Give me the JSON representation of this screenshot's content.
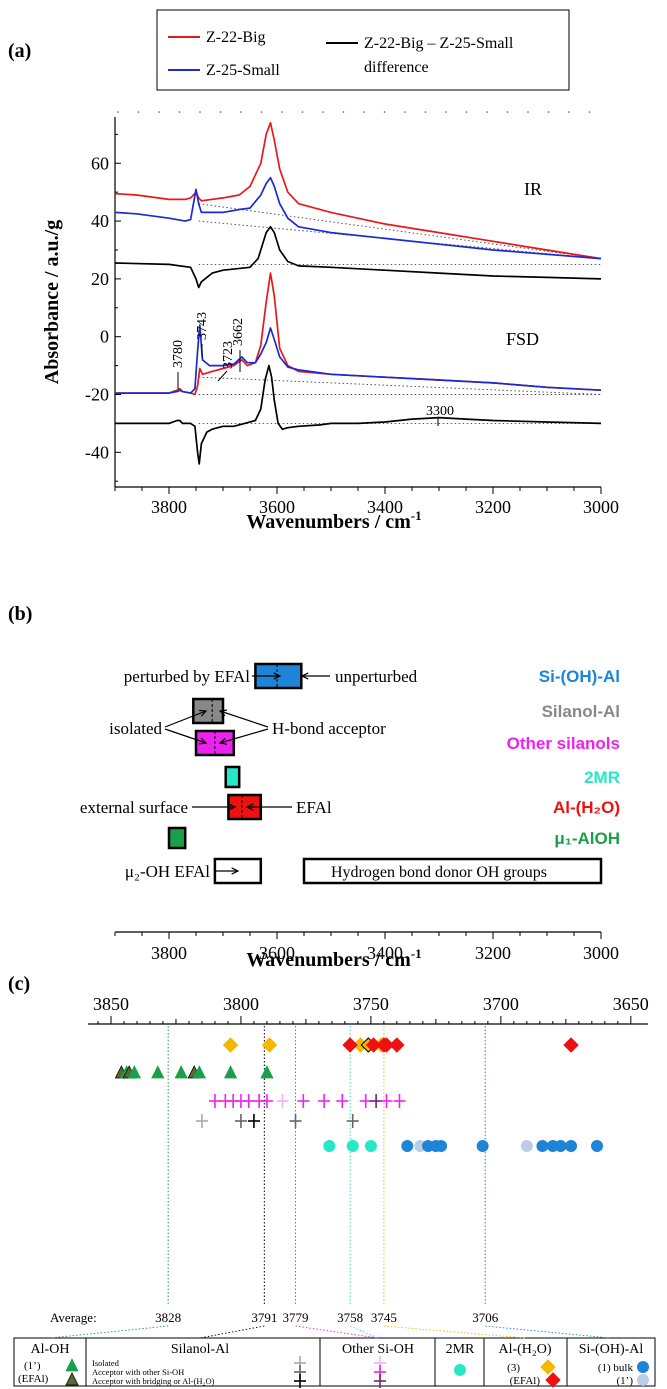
{
  "panel_labels": {
    "a": "(a)",
    "b": "(b)",
    "c": "(c)"
  },
  "colors": {
    "big": "#e8191a",
    "small": "#1a2ad6",
    "diff": "#000000",
    "sioh_al": "#1e84d8",
    "sioh_al_light": "#b9cde6",
    "silanol": "#888888",
    "other": "#ee22ee",
    "mr2": "#25e8c6",
    "al_h2o": "#ee1111",
    "al_h2o_3": "#f5b800",
    "alooh": "#1aa04a",
    "alooh_efal": "#556b2f"
  },
  "chart_data": [
    {
      "type": "line",
      "title": "",
      "xlabel": "Wavenumbers / cm",
      "xlabel_sup": "-1",
      "ylabel": "Absorbance / a.u./g",
      "xlim": [
        3900,
        3000
      ],
      "ylim": [
        -52,
        76
      ],
      "xticks": [
        3800,
        3600,
        3400,
        3200,
        3000
      ],
      "yticks": [
        -40,
        -20,
        0,
        20,
        40,
        60
      ],
      "legend": {
        "placement": "top",
        "entries": [
          {
            "name": "Z-22-Big",
            "color": "#e8191a"
          },
          {
            "name": "Z-25-Small",
            "color": "#1a2ad6"
          },
          {
            "name": "Z-22-Big – Z-25-Small",
            "name2": "difference",
            "color": "#000000"
          }
        ]
      },
      "text_labels": [
        "IR",
        "FSD"
      ],
      "peak_labels": [
        "3780",
        "3743",
        "3723",
        "3662",
        "3300"
      ],
      "series": [
        {
          "name": "Z-22-Big",
          "group": "IR",
          "color": "#e8191a",
          "x": [
            3900,
            3860,
            3800,
            3770,
            3760,
            3750,
            3745,
            3740,
            3700,
            3670,
            3650,
            3630,
            3620,
            3612,
            3605,
            3595,
            3580,
            3560,
            3500,
            3400,
            3300,
            3200,
            3100,
            3000
          ],
          "y": [
            49.5,
            49,
            47.5,
            47.5,
            48,
            50,
            48,
            47,
            48,
            49,
            52,
            60,
            70,
            74,
            68,
            58,
            50,
            46,
            43,
            39,
            36,
            33,
            30,
            27
          ]
        },
        {
          "name": "Z-25-Small",
          "group": "IR",
          "color": "#1a2ad6",
          "x": [
            3900,
            3860,
            3800,
            3770,
            3760,
            3750,
            3745,
            3740,
            3700,
            3670,
            3650,
            3630,
            3620,
            3612,
            3605,
            3595,
            3580,
            3560,
            3500,
            3400,
            3300,
            3200,
            3100,
            3000
          ],
          "y": [
            43,
            42.5,
            41,
            40,
            40.5,
            51,
            46,
            43,
            43,
            44,
            44.5,
            49,
            53,
            55,
            52,
            46,
            41,
            38,
            36,
            34,
            32,
            30,
            28.5,
            27
          ]
        },
        {
          "name": "Z-22-Big – Z-25-Small difference",
          "group": "IR",
          "color": "#000000",
          "x": [
            3900,
            3800,
            3760,
            3750,
            3745,
            3740,
            3720,
            3700,
            3650,
            3635,
            3620,
            3612,
            3605,
            3595,
            3580,
            3560,
            3500,
            3400,
            3300,
            3200,
            3100,
            3000
          ],
          "y": [
            25.5,
            25,
            24,
            20,
            17,
            19,
            22,
            23,
            24,
            27,
            36,
            38,
            36,
            30,
            26,
            24.5,
            24,
            23,
            22,
            21,
            20.5,
            20
          ]
        },
        {
          "name": "Z-22-Big",
          "group": "FSD",
          "color": "#e8191a",
          "x": [
            3900,
            3850,
            3800,
            3785,
            3780,
            3775,
            3760,
            3752,
            3747,
            3743,
            3738,
            3720,
            3700,
            3680,
            3665,
            3655,
            3640,
            3630,
            3620,
            3612,
            3605,
            3595,
            3580,
            3560,
            3500,
            3400,
            3300,
            3200,
            3100,
            3000
          ],
          "y": [
            -19.5,
            -19.5,
            -19.5,
            -18.5,
            -18,
            -19,
            -19.5,
            -20,
            -17,
            -11,
            -13,
            -12,
            -11,
            -10,
            -8,
            -10,
            -9,
            -3,
            12,
            22,
            14,
            -4,
            -10,
            -12,
            -13,
            -14,
            -15,
            -16,
            -17.5,
            -18.5
          ]
        },
        {
          "name": "Z-25-Small",
          "group": "FSD",
          "color": "#1a2ad6",
          "x": [
            3900,
            3850,
            3800,
            3785,
            3780,
            3775,
            3760,
            3752,
            3747,
            3743,
            3738,
            3725,
            3700,
            3680,
            3665,
            3655,
            3640,
            3630,
            3620,
            3612,
            3605,
            3595,
            3580,
            3560,
            3500,
            3400,
            3300,
            3200,
            3100,
            3000
          ],
          "y": [
            -19.5,
            -19.5,
            -19.5,
            -19,
            -18.5,
            -19,
            -19.5,
            -18,
            -5,
            4,
            -8,
            -10,
            -10,
            -9.5,
            -7,
            -9,
            -9,
            -6,
            -2,
            3,
            -1,
            -7,
            -10.5,
            -11.5,
            -13,
            -14,
            -15,
            -16,
            -17.5,
            -18.5
          ]
        },
        {
          "name": "Z-22-Big – Z-25-Small difference",
          "group": "FSD",
          "color": "#000000",
          "x": [
            3900,
            3850,
            3800,
            3785,
            3780,
            3775,
            3760,
            3752,
            3747,
            3744,
            3740,
            3730,
            3720,
            3700,
            3680,
            3660,
            3640,
            3630,
            3622,
            3615,
            3610,
            3605,
            3598,
            3590,
            3580,
            3560,
            3520,
            3500,
            3450,
            3400,
            3350,
            3300,
            3250,
            3200,
            3100,
            3000
          ],
          "y": [
            -30,
            -30,
            -30,
            -29,
            -29,
            -30,
            -30,
            -31,
            -40,
            -44,
            -37,
            -33,
            -32,
            -31,
            -31,
            -30,
            -29,
            -25,
            -15,
            -10,
            -14,
            -22,
            -30,
            -32,
            -31.5,
            -31,
            -30.5,
            -30,
            -30,
            -29.5,
            -28.5,
            -28,
            -28.5,
            -29,
            -29.5,
            -30
          ]
        }
      ],
      "baselines": [
        {
          "x": [
            3745,
            3000
          ],
          "y": [
            40,
            27
          ]
        },
        {
          "x": [
            3745,
            3000
          ],
          "y": [
            46,
            27
          ]
        },
        {
          "x": [
            3745,
            3000
          ],
          "y": [
            25,
            25
          ]
        },
        {
          "x": [
            3745,
            3000
          ],
          "y": [
            -20,
            -20
          ]
        },
        {
          "x": [
            3745,
            3000
          ],
          "y": [
            -14,
            -20
          ]
        },
        {
          "x": [
            3745,
            3000
          ],
          "y": [
            -30,
            -30
          ]
        }
      ]
    },
    {
      "type": "box",
      "xlabel": "Wavenumbers / cm",
      "xlabel_sup": "-1",
      "xlim": [
        3900,
        3000
      ],
      "xticks": [
        3800,
        3600,
        3400,
        3200,
        3000
      ],
      "rows": [
        {
          "category": "Si-(OH)-Al",
          "color": "#1e84d8",
          "box": [
            3640,
            3555
          ],
          "median": 3600,
          "left_label": "perturbed by EFAl",
          "right_label": "unperturbed"
        },
        {
          "category": "Silanol-Al",
          "color": "#888888",
          "box": [
            3755,
            3700
          ],
          "median": 3720,
          "left_label": "isolated",
          "right_label": "H-bond acceptor"
        },
        {
          "category": "Other silanols",
          "color": "#ee22ee",
          "box": [
            3750,
            3680
          ],
          "median": 3715
        },
        {
          "category": "2MR",
          "color": "#25e8c6",
          "box": [
            3695,
            3670
          ],
          "median": 3683
        },
        {
          "category": "Al-(H₂O)",
          "color": "#ee1111",
          "box": [
            3690,
            3630
          ],
          "median": 3665,
          "left_label": "external surface",
          "right_label": "EFAl"
        },
        {
          "category": "μ₁-AlOH",
          "color": "#1aa04a",
          "box": [
            3800,
            3770
          ],
          "median": 3785
        },
        {
          "category": "μ₂-OH EFAl",
          "color": "#ffffff",
          "box": [
            3715,
            3630
          ],
          "median": null,
          "left_label": "μ₂-OH EFAl"
        },
        {
          "category": "Hydrogen bond donor OH groups",
          "color": "#ffffff",
          "box": [
            3550,
            3000
          ],
          "median": null,
          "inner_label": "Hydrogen bond donor OH groups"
        }
      ]
    },
    {
      "type": "scatter",
      "xlim": [
        3855,
        3648
      ],
      "xticks": [
        3850,
        3800,
        3750,
        3700,
        3650
      ],
      "averages_label": "Average:",
      "averages": [
        {
          "value": 3828,
          "color": "#1aa04a"
        },
        {
          "value": 3791,
          "color": "#000000"
        },
        {
          "value": 3779,
          "color": "#ee22ee"
        },
        {
          "value": 3758,
          "color": "#25e8c6"
        },
        {
          "value": 3745,
          "color": "#f5b800"
        },
        {
          "value": 3706,
          "color": "#1e84d8"
        }
      ],
      "rows": [
        {
          "x": [
            3804,
            3789,
            3754,
            3751,
            3746
          ],
          "colors": [
            "#f5b800",
            "#f5b800",
            "#f5b800",
            "#f5b800",
            "#f5b800"
          ],
          "mixed": true
        },
        {
          "x": [
            3846,
            3844,
            3843,
            3841,
            3832,
            3823,
            3818,
            3816,
            3804,
            3790
          ],
          "colors": [
            "#556b2f",
            "#1aa04a",
            "#556b2f",
            "#1aa04a",
            "#1aa04a",
            "#1aa04a",
            "#556b2f",
            "#1aa04a",
            "#1aa04a",
            "#1aa04a"
          ]
        },
        {
          "x": [
            3810,
            3806,
            3803,
            3800,
            3797,
            3793,
            3790,
            3784,
            3776,
            3768,
            3761,
            3752,
            3748,
            3744,
            3739
          ],
          "colors": [
            "#ee22ee",
            "#ee22ee",
            "#ee22ee",
            "#ee22ee",
            "#ee22ee",
            "#ee22ee",
            "#ee22ee",
            "#f3b3f3",
            "#ee22ee",
            "#ee22ee",
            "#ee22ee",
            "#ee22ee",
            "#7a1f7a",
            "#ee22ee",
            "#ee22ee"
          ]
        },
        {
          "x": [
            3815,
            3800,
            3795,
            3779,
            3757
          ],
          "colors": [
            "#aaaaaa",
            "#666666",
            "#000000",
            "#666666",
            "#666666"
          ]
        },
        {
          "x": [
            3766,
            3757,
            3750,
            3736,
            3731,
            3728,
            3725,
            3723,
            3707,
            3690,
            3684,
            3680,
            3677,
            3673,
            3663
          ],
          "colors": [
            "#25e8c6",
            "#25e8c6",
            "#25e8c6",
            "#1e84d8",
            "#b9cde6",
            "#1e84d8",
            "#1e84d8",
            "#1e84d8",
            "#1e84d8",
            "#b9cde6",
            "#1e84d8",
            "#1e84d8",
            "#1e84d8",
            "#1e84d8",
            "#1e84d8"
          ]
        }
      ],
      "red_diamonds": [
        3758,
        3749,
        3745,
        3744,
        3740,
        3673
      ],
      "legend_table": {
        "groups": [
          {
            "title": "Al-OH",
            "items": [
              {
                "label": "(1’)",
                "color": "#1aa04a"
              },
              {
                "label": "(EFAl)",
                "color": "#556b2f"
              }
            ]
          },
          {
            "title": "Silanol-Al",
            "items": [
              {
                "label": "Isolated",
                "color": "#aaaaaa"
              },
              {
                "label": "Acceptor with other Si-OH",
                "color": "#666666"
              },
              {
                "label": "Acceptor with bridging or Al-(H₂O)",
                "color": "#000000"
              }
            ]
          },
          {
            "title": "Other Si-OH",
            "items": [
              {
                "label": "",
                "color": "#f3b3f3"
              },
              {
                "label": "",
                "color": "#ee22ee"
              },
              {
                "label": "",
                "color": "#7a1f7a"
              }
            ]
          },
          {
            "title": "2MR",
            "items": [
              {
                "label": "",
                "color": "#25e8c6"
              }
            ]
          },
          {
            "title": "Al-(H₂O)",
            "items": [
              {
                "label": "(3)",
                "color": "#f5b800"
              },
              {
                "label": "(EFAl)",
                "color": "#ee1111"
              }
            ]
          },
          {
            "title": "Si-(OH)-Al",
            "items": [
              {
                "label": "(1) bulk",
                "color": "#1e84d8"
              },
              {
                "label": "(1’)",
                "color": "#b9cde6"
              }
            ]
          }
        ]
      }
    }
  ]
}
